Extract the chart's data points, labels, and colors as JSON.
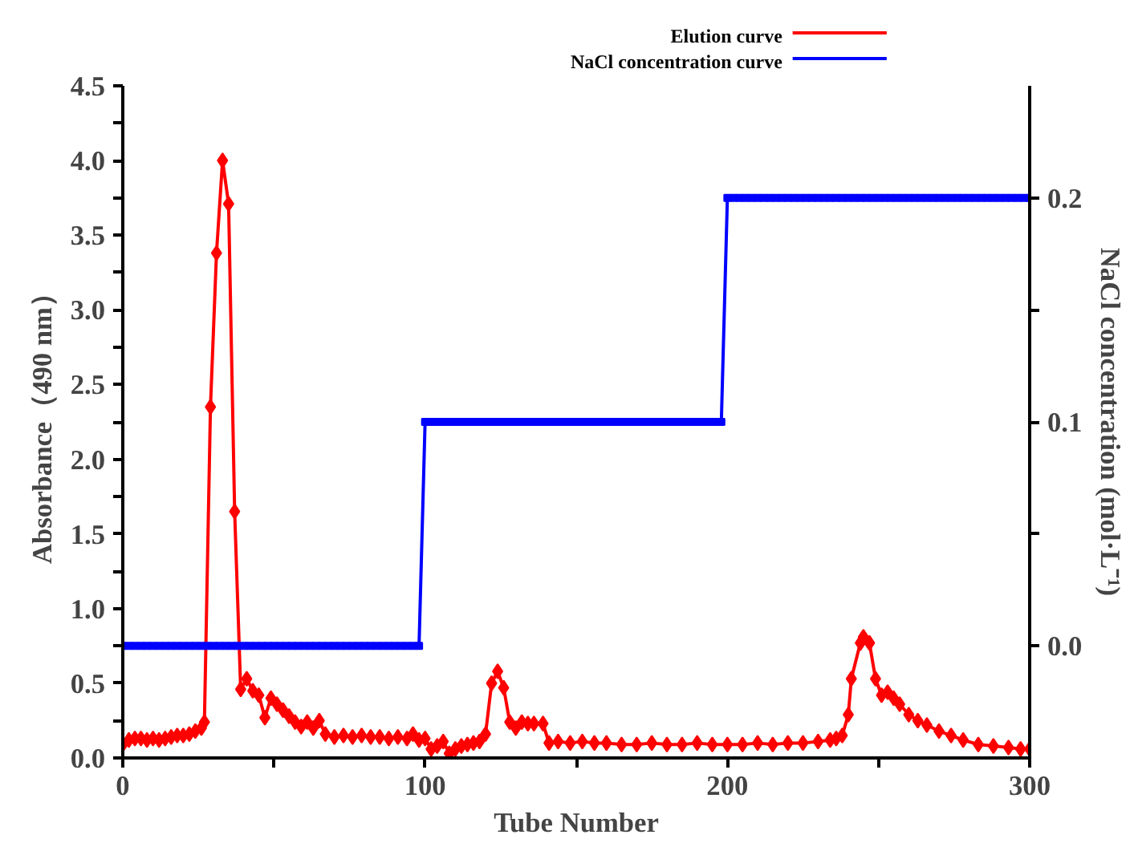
{
  "chart_data": {
    "type": "line",
    "xlabel": "Tube Number",
    "ylabel": "Absorbance（490 nm）",
    "y2label": "NaCl concentration (mol·L⁻¹)",
    "xlim": [
      0,
      300
    ],
    "xticks": [
      0,
      {
        "value": 50,
        "label": null
      },
      100,
      {
        "value": 150,
        "label": null
      },
      200,
      {
        "value": 250,
        "label": null
      },
      300
    ],
    "ylim": [
      0,
      4.5
    ],
    "yticks": [
      {
        "value": 0,
        "label": "0.0"
      },
      {
        "value": 0.25,
        "label": null
      },
      0.5,
      {
        "value": 0.75,
        "label": null
      },
      {
        "value": 1,
        "label": "1.0"
      },
      {
        "value": 1.25,
        "label": null
      },
      1.5,
      {
        "value": 1.75,
        "label": null
      },
      {
        "value": 2,
        "label": "2.0"
      },
      {
        "value": 2.25,
        "label": null
      },
      2.5,
      {
        "value": 2.75,
        "label": null
      },
      {
        "value": 3,
        "label": "3.0"
      },
      {
        "value": 3.25,
        "label": null
      },
      3.5,
      {
        "value": 3.75,
        "label": null
      },
      {
        "value": 4,
        "label": "4.0"
      },
      {
        "value": 4.25,
        "label": null
      },
      4.5
    ],
    "y2lim": [
      -0.05,
      0.25
    ],
    "y2ticks": [
      {
        "value": 0,
        "label": "0.0"
      },
      {
        "value": 0.05,
        "label": null
      },
      0.1,
      {
        "value": 0.15,
        "label": null
      },
      0.2
    ],
    "grid": false,
    "legend": "top right",
    "line_style": "solid",
    "series": [
      {
        "name": "Elution curve",
        "color": "#ff0000",
        "marker": "diamond",
        "x": [
          0,
          2,
          4,
          6,
          8,
          10,
          12,
          14,
          16,
          18,
          20,
          22,
          24,
          26,
          27,
          29,
          31,
          33,
          35,
          37,
          39,
          41,
          43,
          45,
          47,
          49,
          51,
          53,
          55,
          57,
          59,
          61,
          63,
          65,
          67,
          70,
          73,
          76,
          79,
          82,
          85,
          88,
          91,
          94,
          96,
          98,
          100,
          102,
          104,
          106,
          108,
          110,
          112,
          114,
          116,
          118,
          120,
          122,
          124,
          126,
          128,
          130,
          132,
          134,
          136,
          139,
          141,
          144,
          148,
          152,
          156,
          160,
          165,
          170,
          175,
          180,
          185,
          190,
          195,
          200,
          205,
          210,
          215,
          220,
          225,
          230,
          234,
          236,
          238,
          240,
          241,
          244,
          245,
          247,
          249,
          251,
          253,
          255,
          257,
          260,
          263,
          266,
          270,
          274,
          278,
          283,
          288,
          293,
          297,
          300
        ],
        "values": [
          0.09,
          0.12,
          0.13,
          0.13,
          0.12,
          0.13,
          0.12,
          0.13,
          0.14,
          0.15,
          0.15,
          0.16,
          0.18,
          0.2,
          0.24,
          2.35,
          3.38,
          4.0,
          3.71,
          1.65,
          0.46,
          0.53,
          0.45,
          0.42,
          0.27,
          0.4,
          0.36,
          0.32,
          0.28,
          0.24,
          0.21,
          0.24,
          0.2,
          0.25,
          0.16,
          0.14,
          0.15,
          0.14,
          0.15,
          0.14,
          0.14,
          0.13,
          0.14,
          0.13,
          0.16,
          0.12,
          0.13,
          0.06,
          0.08,
          0.11,
          0.03,
          0.06,
          0.08,
          0.09,
          0.1,
          0.11,
          0.16,
          0.5,
          0.58,
          0.47,
          0.24,
          0.2,
          0.24,
          0.23,
          0.23,
          0.23,
          0.1,
          0.11,
          0.1,
          0.11,
          0.1,
          0.1,
          0.09,
          0.09,
          0.1,
          0.09,
          0.09,
          0.1,
          0.09,
          0.09,
          0.09,
          0.1,
          0.09,
          0.1,
          0.1,
          0.11,
          0.12,
          0.13,
          0.15,
          0.29,
          0.53,
          0.77,
          0.81,
          0.77,
          0.53,
          0.42,
          0.44,
          0.4,
          0.36,
          0.29,
          0.25,
          0.22,
          0.18,
          0.15,
          0.12,
          0.09,
          0.08,
          0.07,
          0.06,
          0.06
        ]
      },
      {
        "name": "NaCl concentration curve",
        "color": "#0000ff",
        "marker": "square",
        "axis": "y2",
        "x": [
          0,
          2,
          4,
          6,
          8,
          10,
          12,
          14,
          16,
          18,
          20,
          22,
          24,
          26,
          28,
          30,
          32,
          34,
          36,
          38,
          40,
          42,
          44,
          46,
          48,
          50,
          52,
          54,
          56,
          58,
          60,
          62,
          64,
          66,
          68,
          70,
          72,
          74,
          76,
          78,
          80,
          82,
          84,
          86,
          88,
          90,
          92,
          94,
          96,
          98,
          100,
          102,
          104,
          106,
          108,
          110,
          112,
          114,
          116,
          118,
          120,
          122,
          124,
          126,
          128,
          130,
          132,
          134,
          136,
          138,
          140,
          142,
          144,
          146,
          148,
          150,
          152,
          154,
          156,
          158,
          160,
          162,
          164,
          166,
          168,
          170,
          172,
          174,
          176,
          178,
          180,
          182,
          184,
          186,
          188,
          190,
          192,
          194,
          196,
          198,
          200,
          202,
          204,
          206,
          208,
          210,
          212,
          214,
          216,
          218,
          220,
          222,
          224,
          226,
          228,
          230,
          232,
          234,
          236,
          238,
          240,
          242,
          244,
          246,
          248,
          250,
          252,
          254,
          256,
          258,
          260,
          262,
          264,
          266,
          268,
          270,
          272,
          274,
          276,
          278,
          280,
          282,
          284,
          286,
          288,
          290,
          292,
          294,
          296,
          298,
          300
        ],
        "values": [
          0,
          0,
          0,
          0,
          0,
          0,
          0,
          0,
          0,
          0,
          0,
          0,
          0,
          0,
          0,
          0,
          0,
          0,
          0,
          0,
          0,
          0,
          0,
          0,
          0,
          0,
          0,
          0,
          0,
          0,
          0,
          0,
          0,
          0,
          0,
          0,
          0,
          0,
          0,
          0,
          0,
          0,
          0,
          0,
          0,
          0,
          0,
          0,
          0,
          0,
          0.1,
          0.1,
          0.1,
          0.1,
          0.1,
          0.1,
          0.1,
          0.1,
          0.1,
          0.1,
          0.1,
          0.1,
          0.1,
          0.1,
          0.1,
          0.1,
          0.1,
          0.1,
          0.1,
          0.1,
          0.1,
          0.1,
          0.1,
          0.1,
          0.1,
          0.1,
          0.1,
          0.1,
          0.1,
          0.1,
          0.1,
          0.1,
          0.1,
          0.1,
          0.1,
          0.1,
          0.1,
          0.1,
          0.1,
          0.1,
          0.1,
          0.1,
          0.1,
          0.1,
          0.1,
          0.1,
          0.1,
          0.1,
          0.1,
          0.1,
          0.2,
          0.2,
          0.2,
          0.2,
          0.2,
          0.2,
          0.2,
          0.2,
          0.2,
          0.2,
          0.2,
          0.2,
          0.2,
          0.2,
          0.2,
          0.2,
          0.2,
          0.2,
          0.2,
          0.2,
          0.2,
          0.2,
          0.2,
          0.2,
          0.2,
          0.2,
          0.2,
          0.2,
          0.2,
          0.2,
          0.2,
          0.2,
          0.2,
          0.2,
          0.2,
          0.2,
          0.2,
          0.2,
          0.2,
          0.2,
          0.2,
          0.2,
          0.2,
          0.2,
          0.2,
          0.2,
          0.2,
          0.2,
          0.2,
          0.2,
          0.2
        ]
      }
    ]
  }
}
